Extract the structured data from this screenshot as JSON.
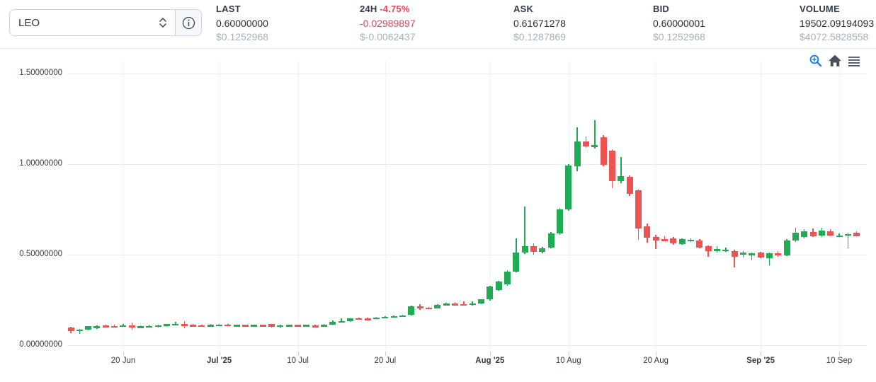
{
  "header": {
    "pair_selector": {
      "value": "LEO"
    },
    "stats": {
      "last": {
        "label": "LAST",
        "value": "0.60000000",
        "usd": "$0.1252968"
      },
      "change24h": {
        "label": "24H",
        "pct": "-4.75%",
        "value": "-0.02989897",
        "usd": "$-0.0062437"
      },
      "ask": {
        "label": "ASK",
        "value": "0.61671278",
        "usd": "$0.1287869"
      },
      "bid": {
        "label": "BID",
        "value": "0.60000001",
        "usd": "$0.1252968"
      },
      "volume": {
        "label": "VOLUME",
        "value": "19502.09194093",
        "usd": "$4072.5828558"
      }
    }
  },
  "toolbar": {
    "icons": [
      "zoom-in",
      "home",
      "menu"
    ]
  },
  "colors": {
    "up_green": "#21ab55",
    "down_red": "#ee5353",
    "negative_text": "#e8435a",
    "heading_text": "#313b4b",
    "value_text": "#272e38",
    "muted_text": "#a9b1bc",
    "grid_line": "#e9edf0",
    "toolbar_blue": "#1e80e8",
    "toolbar_dark": "#46505e"
  },
  "chart_data": {
    "type": "candlestick",
    "symbol": "LEO",
    "interval": "1d",
    "start_date": "2025-06-14",
    "grid": true,
    "ylim": [
      0,
      1.5
    ],
    "y_axis": {
      "ticks": [
        {
          "label": "0.00000000",
          "value": 0.0
        },
        {
          "label": "0.50000000",
          "value": 0.5
        },
        {
          "label": "1.00000000",
          "value": 1.0
        },
        {
          "label": "1.50000000",
          "value": 1.5
        }
      ]
    },
    "x_axis": {
      "ticks": [
        {
          "label": "20 Jun",
          "day_index": 6,
          "bold": false
        },
        {
          "label": "Jul '25",
          "day_index": 17,
          "bold": true
        },
        {
          "label": "10 Jul",
          "day_index": 26,
          "bold": false
        },
        {
          "label": "20 Jul",
          "day_index": 36,
          "bold": false
        },
        {
          "label": "Aug '25",
          "day_index": 48,
          "bold": true
        },
        {
          "label": "10 Aug",
          "day_index": 57,
          "bold": false
        },
        {
          "label": "20 Aug",
          "day_index": 67,
          "bold": false
        },
        {
          "label": "Sep '25",
          "day_index": 79,
          "bold": true
        },
        {
          "label": "10 Sep",
          "day_index": 88,
          "bold": false
        }
      ]
    },
    "candles_format": [
      "open",
      "high",
      "low",
      "close"
    ],
    "candles": [
      [
        0.098,
        0.102,
        0.068,
        0.078
      ],
      [
        0.078,
        0.09,
        0.064,
        0.087
      ],
      [
        0.086,
        0.106,
        0.082,
        0.104
      ],
      [
        0.094,
        0.108,
        0.09,
        0.105
      ],
      [
        0.108,
        0.113,
        0.101,
        0.103
      ],
      [
        0.107,
        0.112,
        0.1,
        0.104
      ],
      [
        0.105,
        0.116,
        0.102,
        0.11
      ],
      [
        0.109,
        0.126,
        0.085,
        0.104
      ],
      [
        0.098,
        0.108,
        0.094,
        0.105
      ],
      [
        0.103,
        0.111,
        0.098,
        0.106
      ],
      [
        0.101,
        0.113,
        0.098,
        0.111
      ],
      [
        0.106,
        0.119,
        0.103,
        0.116
      ],
      [
        0.114,
        0.127,
        0.11,
        0.118
      ],
      [
        0.116,
        0.131,
        0.094,
        0.11
      ],
      [
        0.112,
        0.116,
        0.106,
        0.109
      ],
      [
        0.111,
        0.114,
        0.107,
        0.11
      ],
      [
        0.11,
        0.116,
        0.107,
        0.113
      ],
      [
        0.112,
        0.117,
        0.109,
        0.115
      ],
      [
        0.114,
        0.117,
        0.109,
        0.111
      ],
      [
        0.111,
        0.115,
        0.108,
        0.113
      ],
      [
        0.113,
        0.115,
        0.106,
        0.108
      ],
      [
        0.108,
        0.114,
        0.106,
        0.112
      ],
      [
        0.112,
        0.114,
        0.106,
        0.108
      ],
      [
        0.116,
        0.119,
        0.096,
        0.1
      ],
      [
        0.1,
        0.113,
        0.097,
        0.111
      ],
      [
        0.109,
        0.114,
        0.106,
        0.112
      ],
      [
        0.112,
        0.114,
        0.106,
        0.108
      ],
      [
        0.108,
        0.115,
        0.106,
        0.113
      ],
      [
        0.108,
        0.112,
        0.099,
        0.102
      ],
      [
        0.102,
        0.117,
        0.1,
        0.115
      ],
      [
        0.115,
        0.135,
        0.112,
        0.13
      ],
      [
        0.13,
        0.15,
        0.126,
        0.133
      ],
      [
        0.131,
        0.15,
        0.128,
        0.148
      ],
      [
        0.15,
        0.153,
        0.144,
        0.147
      ],
      [
        0.148,
        0.151,
        0.141,
        0.145
      ],
      [
        0.147,
        0.156,
        0.144,
        0.153
      ],
      [
        0.152,
        0.16,
        0.15,
        0.158
      ],
      [
        0.157,
        0.164,
        0.154,
        0.162
      ],
      [
        0.161,
        0.168,
        0.158,
        0.166
      ],
      [
        0.168,
        0.218,
        0.164,
        0.214
      ],
      [
        0.214,
        0.226,
        0.196,
        0.206
      ],
      [
        0.208,
        0.212,
        0.199,
        0.203
      ],
      [
        0.205,
        0.227,
        0.202,
        0.224
      ],
      [
        0.224,
        0.236,
        0.22,
        0.229
      ],
      [
        0.23,
        0.238,
        0.218,
        0.225
      ],
      [
        0.228,
        0.243,
        0.222,
        0.227
      ],
      [
        0.226,
        0.244,
        0.22,
        0.232
      ],
      [
        0.232,
        0.254,
        0.228,
        0.252
      ],
      [
        0.252,
        0.33,
        0.248,
        0.325
      ],
      [
        0.305,
        0.355,
        0.3,
        0.35
      ],
      [
        0.335,
        0.415,
        0.33,
        0.408
      ],
      [
        0.408,
        0.59,
        0.402,
        0.51
      ],
      [
        0.51,
        0.765,
        0.502,
        0.545
      ],
      [
        0.545,
        0.561,
        0.5,
        0.515
      ],
      [
        0.515,
        0.543,
        0.507,
        0.536
      ],
      [
        0.54,
        0.625,
        0.535,
        0.617
      ],
      [
        0.617,
        0.757,
        0.61,
        0.75
      ],
      [
        0.75,
        1.0,
        0.742,
        0.993
      ],
      [
        0.988,
        1.203,
        0.96,
        1.125
      ],
      [
        1.125,
        1.151,
        1.088,
        1.099
      ],
      [
        1.095,
        1.242,
        1.085,
        1.105
      ],
      [
        1.15,
        1.16,
        0.99,
        0.997
      ],
      [
        1.075,
        1.082,
        0.868,
        0.905
      ],
      [
        0.905,
        1.04,
        0.893,
        0.932
      ],
      [
        0.93,
        0.938,
        0.826,
        0.834
      ],
      [
        0.855,
        0.86,
        0.583,
        0.645
      ],
      [
        0.655,
        0.67,
        0.568,
        0.592
      ],
      [
        0.598,
        0.608,
        0.533,
        0.58
      ],
      [
        0.585,
        0.602,
        0.575,
        0.58
      ],
      [
        0.59,
        0.596,
        0.556,
        0.562
      ],
      [
        0.56,
        0.59,
        0.555,
        0.585
      ],
      [
        0.578,
        0.59,
        0.57,
        0.583
      ],
      [
        0.578,
        0.584,
        0.534,
        0.54
      ],
      [
        0.545,
        0.552,
        0.49,
        0.52
      ],
      [
        0.525,
        0.545,
        0.512,
        0.53
      ],
      [
        0.524,
        0.538,
        0.516,
        0.528
      ],
      [
        0.52,
        0.526,
        0.43,
        0.49
      ],
      [
        0.502,
        0.52,
        0.486,
        0.51
      ],
      [
        0.502,
        0.512,
        0.47,
        0.506
      ],
      [
        0.51,
        0.516,
        0.48,
        0.486
      ],
      [
        0.482,
        0.512,
        0.442,
        0.508
      ],
      [
        0.506,
        0.518,
        0.488,
        0.498
      ],
      [
        0.498,
        0.585,
        0.492,
        0.578
      ],
      [
        0.578,
        0.648,
        0.572,
        0.622
      ],
      [
        0.598,
        0.642,
        0.59,
        0.63
      ],
      [
        0.625,
        0.645,
        0.598,
        0.603
      ],
      [
        0.605,
        0.65,
        0.598,
        0.634
      ],
      [
        0.628,
        0.64,
        0.603,
        0.606
      ],
      [
        0.603,
        0.616,
        0.597,
        0.607
      ],
      [
        0.609,
        0.622,
        0.535,
        0.614
      ],
      [
        0.621,
        0.627,
        0.601,
        0.6
      ]
    ],
    "colors": {
      "up": "#21ab55",
      "down": "#ee5353"
    },
    "legend": "none"
  }
}
